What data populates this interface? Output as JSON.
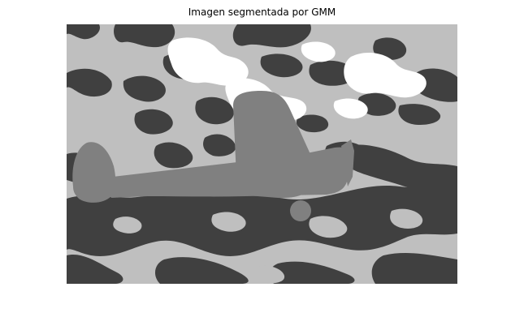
{
  "figure": {
    "title": "Imagen segmentada por GMM"
  },
  "segmentation": {
    "colors": {
      "white": "#ffffff",
      "light_gray": "#bfbfbf",
      "mid_gray": "#808080",
      "dark_gray": "#404040"
    },
    "subject": "airplane-silhouette"
  }
}
